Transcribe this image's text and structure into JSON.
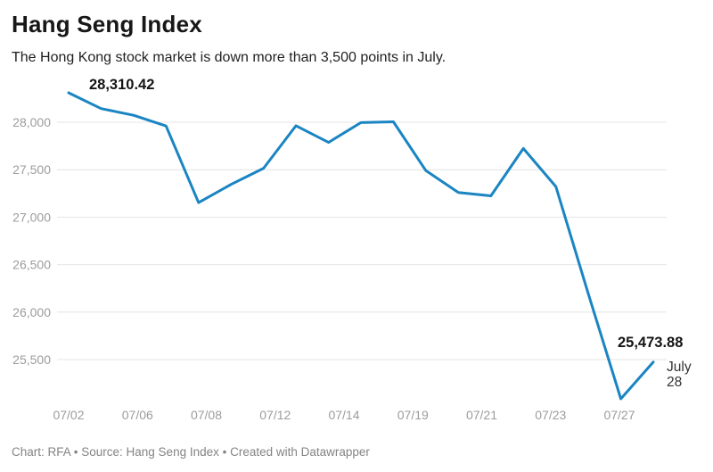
{
  "header": {
    "title": "Hang Seng Index",
    "subtitle": "The Hong Kong stock market is down more than 3,500 points in July."
  },
  "chart_data": {
    "type": "line",
    "title": "Hang Seng Index",
    "xlabel": "",
    "ylabel": "",
    "x": [
      "07/02",
      "07/05",
      "07/06",
      "07/07",
      "07/08",
      "07/09",
      "07/12",
      "07/13",
      "07/14",
      "07/15",
      "07/16",
      "07/19",
      "07/20",
      "07/21",
      "07/22",
      "07/23",
      "07/26",
      "07/27",
      "07/28"
    ],
    "values": [
      28310.42,
      28143.5,
      28072.86,
      27960.62,
      27153.13,
      27344.54,
      27515.24,
      27963.41,
      27787.46,
      27996.27,
      28004.68,
      27489.78,
      27259.25,
      27224.58,
      27723.84,
      27321.98,
      26192.32,
      25086.43,
      25473.88
    ],
    "ylim": [
      25000,
      28500
    ],
    "yticks": [
      28000,
      27500,
      27000,
      26500,
      26000,
      25500
    ],
    "ytick_labels": [
      "28,000",
      "27,500",
      "27,000",
      "26,500",
      "26,000",
      "25,500"
    ],
    "xtick_labels": [
      "07/02",
      "07/06",
      "07/08",
      "07/12",
      "07/14",
      "07/19",
      "07/21",
      "07/23",
      "07/27"
    ],
    "grid": true,
    "legend": false,
    "line_color": "#1a85c2",
    "annotations": {
      "start_value": "28,310.42",
      "end_value": "25,473.88",
      "end_date_line1": "July",
      "end_date_line2": "28"
    }
  },
  "colors": {
    "line": "#1a85c2",
    "grid": "#e4e4e4",
    "axis_text": "#9c9c9c",
    "title_text": "#171717",
    "annotation_text": "#141414",
    "date_note_text": "#333333",
    "footer_text": "#848484"
  },
  "footer": {
    "credit": "Chart: RFA • Source: Hang Seng Index • Created with Datawrapper"
  }
}
